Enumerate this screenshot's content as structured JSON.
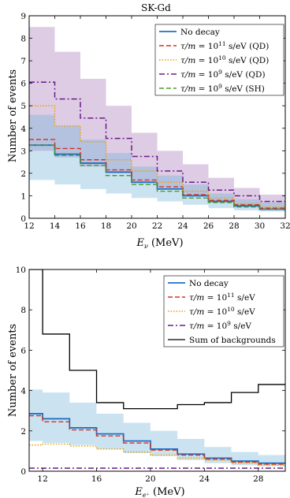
{
  "chart_data": [
    {
      "type": "line",
      "title": "SK-Gd",
      "xlabel": "E_ν (MeV)",
      "ylabel": "Number of events",
      "xlim": [
        12,
        32
      ],
      "ylim": [
        0,
        9
      ],
      "xticks": [
        12,
        14,
        16,
        18,
        20,
        22,
        24,
        26,
        28,
        30,
        32
      ],
      "yticks": [
        0,
        1,
        2,
        3,
        4,
        5,
        6,
        7,
        8,
        9
      ],
      "legend_position": "top-right",
      "bin_edges": [
        12,
        14,
        16,
        18,
        20,
        22,
        24,
        26,
        28,
        30,
        32
      ],
      "bands": [
        {
          "color": "#7b3294",
          "opacity": 0.25,
          "lower": [
            3.0,
            2.7,
            2.3,
            2.0,
            1.6,
            1.3,
            1.0,
            0.75,
            0.55,
            0.4
          ],
          "upper": [
            8.5,
            7.4,
            6.2,
            5.0,
            3.8,
            3.0,
            2.4,
            1.8,
            1.35,
            1.05
          ]
        },
        {
          "color": "#6baed6",
          "opacity": 0.35,
          "lower": [
            1.7,
            1.5,
            1.3,
            1.1,
            0.9,
            0.75,
            0.6,
            0.45,
            0.35,
            0.3
          ],
          "upper": [
            4.6,
            4.1,
            3.5,
            2.9,
            2.3,
            1.9,
            1.5,
            1.1,
            0.85,
            0.7
          ]
        }
      ],
      "series": [
        {
          "name": "No decay",
          "color": "#1f6fc5",
          "dash": "",
          "width": 1.8,
          "values": [
            3.25,
            2.85,
            2.45,
            2.05,
            1.6,
            1.3,
            1.0,
            0.75,
            0.55,
            0.4
          ]
        },
        {
          "name": "τ/m = 10¹¹ s/eV (QD)",
          "color": "#d7301f",
          "dash": "6,3",
          "width": 1.4,
          "values": [
            3.5,
            3.1,
            2.6,
            2.15,
            1.7,
            1.4,
            1.05,
            0.8,
            0.6,
            0.45
          ]
        },
        {
          "name": "τ/m = 10¹⁰ s/eV (QD)",
          "color": "#e6a000",
          "dash": "1.5,2",
          "width": 1.5,
          "values": [
            5.0,
            4.1,
            3.4,
            2.6,
            2.1,
            1.6,
            1.2,
            0.9,
            0.65,
            0.5
          ]
        },
        {
          "name": "τ/m = 10⁹ s/eV (QD)",
          "color": "#6a1b8a",
          "dash": "7,3,2,3",
          "width": 1.5,
          "values": [
            6.05,
            5.3,
            4.45,
            3.55,
            2.75,
            2.1,
            1.6,
            1.25,
            1.0,
            0.75
          ]
        },
        {
          "name": "τ/m = 10⁹ s/eV (SH)",
          "color": "#4d9a2a",
          "dash": "6,3",
          "width": 1.4,
          "values": [
            3.25,
            2.8,
            2.35,
            1.9,
            1.5,
            1.2,
            0.9,
            0.7,
            0.5,
            0.4
          ]
        }
      ]
    },
    {
      "type": "line",
      "title": "",
      "xlabel": "E_e⁺ (MeV)",
      "ylabel": "Number of events",
      "xlim": [
        11,
        30
      ],
      "ylim": [
        0,
        10
      ],
      "xticks": [
        12,
        16,
        20,
        24,
        28
      ],
      "yticks": [
        0,
        2,
        4,
        6,
        8,
        10
      ],
      "legend_position": "top-right",
      "bin_edges": [
        11,
        12,
        14,
        16,
        18,
        20,
        22,
        24,
        26,
        28,
        30
      ],
      "bands": [
        {
          "color": "#6baed6",
          "opacity": 0.35,
          "lower": [
            1.5,
            1.4,
            1.3,
            1.1,
            0.9,
            0.75,
            0.55,
            0.4,
            0.3,
            0.25
          ],
          "upper": [
            4.05,
            3.9,
            3.4,
            2.85,
            2.4,
            2.0,
            1.6,
            1.2,
            0.95,
            0.8
          ]
        }
      ],
      "series": [
        {
          "name": "No decay",
          "color": "#1f6fc5",
          "dash": "",
          "width": 1.8,
          "values": [
            2.85,
            2.6,
            2.15,
            1.85,
            1.5,
            1.1,
            0.85,
            0.65,
            0.5,
            0.4
          ]
        },
        {
          "name": "τ/m = 10¹¹ s/eV",
          "color": "#d7301f",
          "dash": "6,3",
          "width": 1.4,
          "values": [
            2.75,
            2.45,
            2.05,
            1.75,
            1.4,
            1.05,
            0.8,
            0.6,
            0.45,
            0.35
          ]
        },
        {
          "name": "τ/m = 10¹⁰ s/eV",
          "color": "#e6a000",
          "dash": "1.5,2",
          "width": 1.5,
          "values": [
            1.3,
            1.35,
            1.25,
            1.1,
            0.95,
            0.8,
            0.65,
            0.55,
            0.4,
            0.3
          ]
        },
        {
          "name": "τ/m = 10⁹ s/eV",
          "color": "#6a1b8a",
          "dash": "7,3,2,3",
          "width": 1.5,
          "values": [
            0.15,
            0.15,
            0.15,
            0.15,
            0.15,
            0.15,
            0.15,
            0.15,
            0.15,
            0.15
          ]
        },
        {
          "name": "Sum of backgrounds",
          "color": "#000000",
          "dash": "",
          "width": 1.3,
          "values": [
            10.5,
            6.8,
            5.0,
            3.4,
            3.1,
            3.1,
            3.3,
            3.4,
            3.9,
            4.3
          ]
        }
      ]
    }
  ]
}
